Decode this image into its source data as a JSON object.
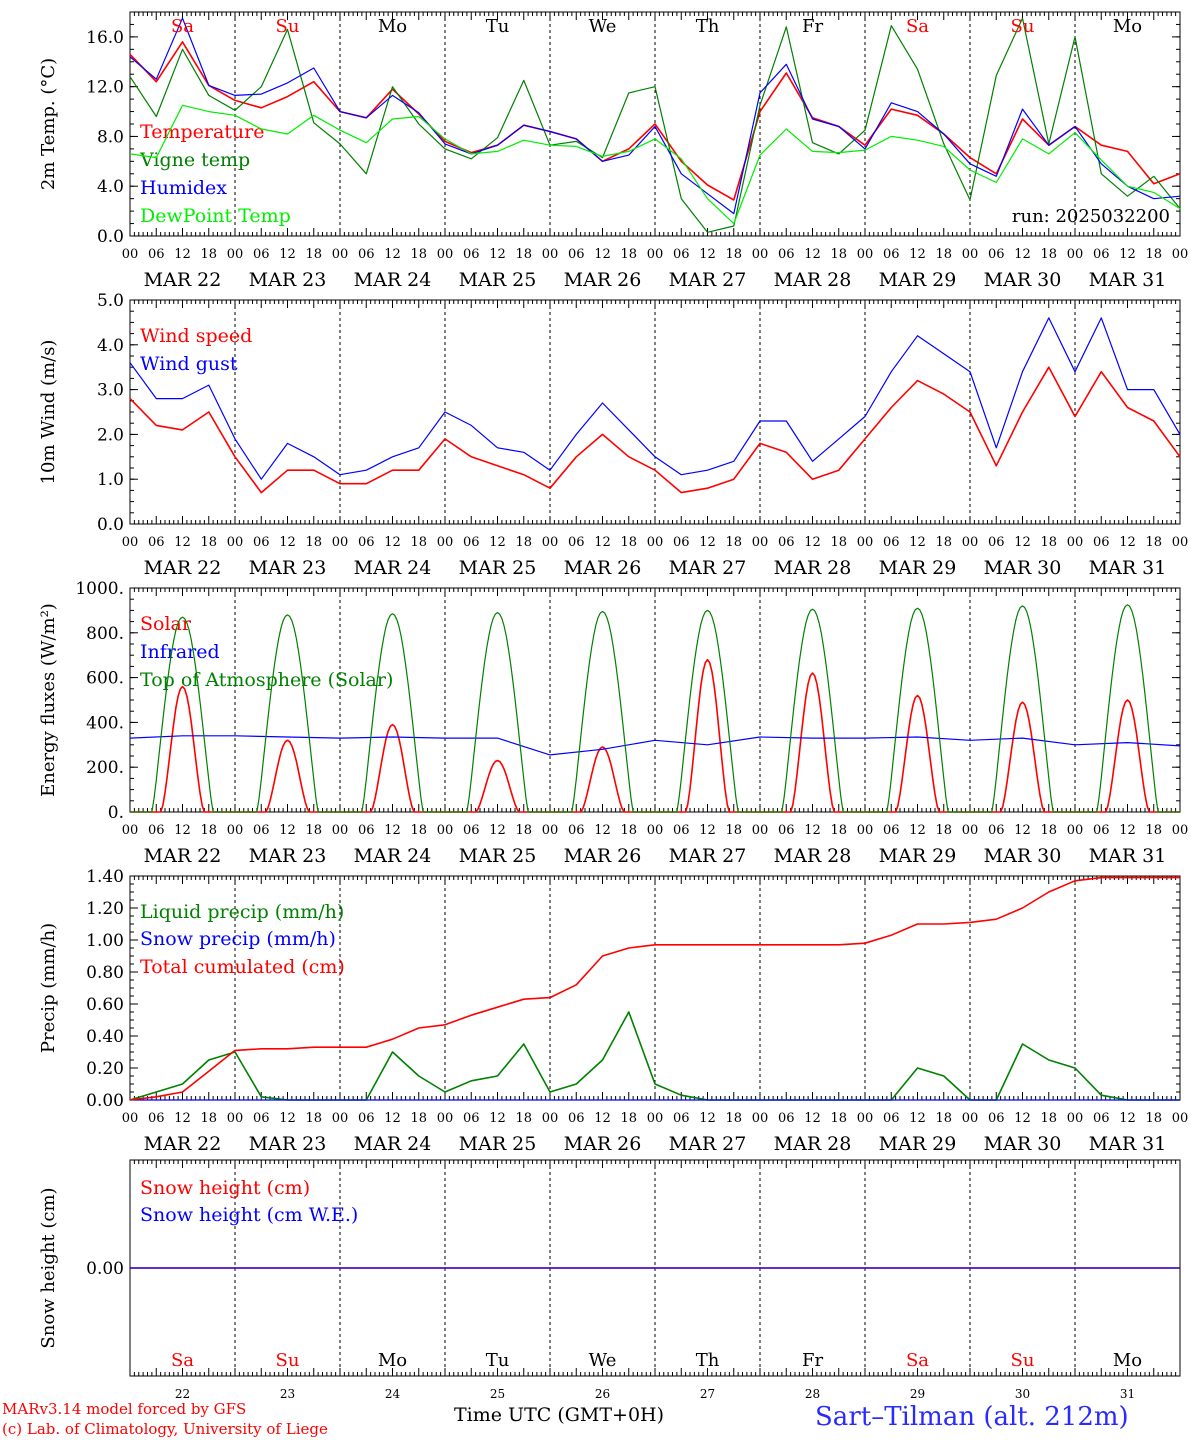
{
  "chart_data": [
    {
      "type": "line",
      "ylabel": "2m Temp. (°C)",
      "ylim": [
        0,
        18
      ],
      "ytick_labels": [
        "0.0",
        "4.0",
        "8.0",
        "12.0",
        "16.0"
      ],
      "ytick_values": [
        0,
        4,
        8,
        12,
        16
      ],
      "run_label": "run: 2025032200",
      "legend_placement": "left",
      "x": [
        0,
        6,
        12,
        18,
        24,
        30,
        36,
        42,
        48,
        54,
        60,
        66,
        72,
        78,
        84,
        90,
        96,
        102,
        108,
        114,
        120,
        126,
        132,
        138,
        144,
        150,
        156,
        162,
        168,
        174,
        180,
        186,
        192,
        198,
        204,
        210,
        216,
        222,
        228,
        234,
        240
      ],
      "series": [
        {
          "name": "Temperature",
          "color": "#ff0000",
          "values": [
            14.6,
            12.4,
            15.6,
            12.1,
            10.9,
            10.3,
            11.2,
            12.4,
            10.0,
            9.5,
            11.8,
            9.8,
            7.6,
            6.7,
            7.3,
            8.9,
            8.4,
            7.8,
            6.0,
            7.0,
            9.0,
            6.0,
            4.1,
            2.9,
            10.0,
            13.1,
            9.5,
            8.8,
            7.3,
            10.2,
            9.7,
            8.2,
            6.3,
            5.0,
            9.4,
            7.3,
            8.8,
            7.3,
            6.8,
            4.2,
            5.0
          ]
        },
        {
          "name": "Vigne temp",
          "color": "#008000",
          "values": [
            12.8,
            9.6,
            15.0,
            11.3,
            10.1,
            12.0,
            16.6,
            9.1,
            7.4,
            5.0,
            12.0,
            9.0,
            7.0,
            6.2,
            7.9,
            12.5,
            7.3,
            7.6,
            6.3,
            11.5,
            12.0,
            3.0,
            0.3,
            0.8,
            10.5,
            16.8,
            7.5,
            6.6,
            8.5,
            16.9,
            13.4,
            7.4,
            2.9,
            12.9,
            17.5,
            7.4,
            16.0,
            5.0,
            3.2,
            4.8,
            2.2
          ]
        },
        {
          "name": "Humidex",
          "color": "#0000ff",
          "values": [
            14.4,
            12.6,
            17.5,
            12.1,
            11.3,
            11.4,
            12.3,
            13.5,
            10.0,
            9.5,
            11.3,
            9.9,
            7.4,
            6.6,
            7.3,
            8.9,
            8.4,
            7.8,
            6.0,
            6.5,
            8.8,
            5.0,
            3.4,
            1.8,
            11.5,
            13.8,
            9.4,
            8.8,
            7.0,
            10.7,
            10.0,
            8.2,
            5.8,
            4.8,
            10.2,
            7.3,
            8.8,
            5.8,
            4.0,
            3.0,
            3.2
          ]
        },
        {
          "name": "DewPoint Temp",
          "color": "#00ee00",
          "values": [
            6.6,
            6.3,
            10.5,
            10.0,
            9.7,
            8.6,
            8.2,
            9.7,
            8.5,
            7.5,
            9.4,
            9.6,
            7.8,
            6.6,
            6.8,
            7.7,
            7.3,
            7.2,
            6.4,
            6.8,
            7.8,
            6.2,
            3.0,
            1.0,
            6.5,
            8.6,
            6.8,
            6.7,
            6.9,
            8.0,
            7.7,
            7.2,
            5.3,
            4.3,
            7.8,
            6.6,
            8.3,
            6.1,
            4.0,
            3.5,
            2.2
          ]
        }
      ]
    },
    {
      "type": "line",
      "ylabel": "10m Wind (m/s)",
      "ylim": [
        0,
        5
      ],
      "ytick_labels": [
        "0.0",
        "1.0",
        "2.0",
        "3.0",
        "4.0",
        "5.0"
      ],
      "ytick_values": [
        0,
        1,
        2,
        3,
        4,
        5
      ],
      "legend_placement": "left",
      "x": [
        0,
        6,
        12,
        18,
        24,
        30,
        36,
        42,
        48,
        54,
        60,
        66,
        72,
        78,
        84,
        90,
        96,
        102,
        108,
        114,
        120,
        126,
        132,
        138,
        144,
        150,
        156,
        162,
        168,
        174,
        180,
        186,
        192,
        198,
        204,
        210,
        216,
        222,
        228,
        234,
        240
      ],
      "series": [
        {
          "name": "Wind speed",
          "color": "#ff0000",
          "values": [
            2.8,
            2.2,
            2.1,
            2.5,
            1.5,
            0.7,
            1.2,
            1.2,
            0.9,
            0.9,
            1.2,
            1.2,
            1.9,
            1.5,
            1.3,
            1.1,
            0.8,
            1.5,
            2.0,
            1.5,
            1.2,
            0.7,
            0.8,
            1.0,
            1.8,
            1.6,
            1.0,
            1.2,
            1.9,
            2.6,
            3.2,
            2.9,
            2.5,
            1.3,
            2.5,
            3.5,
            2.4,
            3.4,
            2.6,
            2.3,
            1.5
          ]
        },
        {
          "name": "Wind gust",
          "color": "#0000ff",
          "values": [
            3.6,
            2.8,
            2.8,
            3.1,
            1.9,
            1.0,
            1.8,
            1.5,
            1.1,
            1.2,
            1.5,
            1.7,
            2.5,
            2.2,
            1.7,
            1.6,
            1.2,
            2.0,
            2.7,
            2.1,
            1.5,
            1.1,
            1.2,
            1.4,
            2.3,
            2.3,
            1.4,
            1.9,
            2.4,
            3.4,
            4.2,
            3.8,
            3.4,
            1.7,
            3.4,
            4.6,
            3.4,
            4.6,
            3.0,
            3.0,
            2.0
          ]
        }
      ]
    },
    {
      "type": "line",
      "ylabel": "Energy fluxes (W/m²)",
      "ylim": [
        0,
        1000
      ],
      "ytick_labels": [
        "0.",
        "200.",
        "400.",
        "600.",
        "800.",
        "1000."
      ],
      "ytick_values": [
        0,
        200,
        400,
        600,
        800,
        1000
      ],
      "legend_placement": "left",
      "series": [
        {
          "name": "Solar",
          "color": "#ff0000",
          "day_peaks": [
            560,
            320,
            390,
            230,
            290,
            680,
            620,
            520,
            490,
            500
          ]
        },
        {
          "name": "Infrared",
          "color": "#0000ff",
          "values": [
            330,
            340,
            340,
            335,
            330,
            335,
            330,
            330,
            255,
            280,
            320,
            300,
            335,
            330,
            330,
            335,
            320,
            330,
            300,
            310,
            295
          ]
        },
        {
          "name": "Top of Atmosphere (Solar)",
          "color": "#008000",
          "day_peaks": [
            870,
            880,
            885,
            890,
            895,
            900,
            905,
            910,
            920,
            925
          ]
        }
      ]
    },
    {
      "type": "line",
      "ylabel": "Precip (mm/h)",
      "ylim": [
        0,
        1.4
      ],
      "ytick_labels": [
        "0.00",
        "0.20",
        "0.40",
        "0.60",
        "0.80",
        "1.00",
        "1.20",
        "1.40"
      ],
      "ytick_values": [
        0,
        0.2,
        0.4,
        0.6,
        0.8,
        1.0,
        1.2,
        1.4
      ],
      "legend_placement": "left",
      "x": [
        0,
        6,
        12,
        18,
        24,
        30,
        36,
        42,
        48,
        54,
        60,
        66,
        72,
        78,
        84,
        90,
        96,
        102,
        108,
        114,
        120,
        126,
        132,
        138,
        144,
        150,
        156,
        162,
        168,
        174,
        180,
        186,
        192,
        198,
        204,
        210,
        216,
        222,
        228,
        234,
        240
      ],
      "series": [
        {
          "name": "Liquid precip (mm/h)",
          "color": "#008000",
          "values": [
            0,
            0.05,
            0.1,
            0.25,
            0.3,
            0.02,
            0,
            0,
            0,
            0,
            0.3,
            0.15,
            0.05,
            0.12,
            0.15,
            0.35,
            0.05,
            0.1,
            0.25,
            0.55,
            0.1,
            0.03,
            0,
            0,
            0,
            0,
            0,
            0,
            0,
            0,
            0.2,
            0.15,
            0,
            0,
            0.35,
            0.25,
            0.2,
            0.03,
            0,
            0,
            0
          ]
        },
        {
          "name": "Snow precip (mm/h)",
          "color": "#0000ff",
          "values": [
            0,
            0,
            0,
            0,
            0,
            0,
            0,
            0,
            0,
            0,
            0,
            0,
            0,
            0,
            0,
            0,
            0,
            0,
            0,
            0,
            0,
            0,
            0,
            0,
            0,
            0,
            0,
            0,
            0,
            0,
            0,
            0,
            0,
            0,
            0,
            0,
            0,
            0,
            0,
            0,
            0
          ]
        },
        {
          "name": "Total cumulated (cm)",
          "color": "#ff0000",
          "values": [
            0,
            0.02,
            0.05,
            0.18,
            0.31,
            0.32,
            0.32,
            0.33,
            0.33,
            0.33,
            0.38,
            0.45,
            0.47,
            0.53,
            0.58,
            0.63,
            0.64,
            0.72,
            0.9,
            0.95,
            0.97,
            0.97,
            0.97,
            0.97,
            0.97,
            0.97,
            0.97,
            0.97,
            0.98,
            1.03,
            1.1,
            1.1,
            1.11,
            1.13,
            1.2,
            1.3,
            1.37,
            1.39,
            1.39,
            1.39,
            1.39
          ]
        }
      ]
    },
    {
      "type": "line",
      "ylabel": "Snow height (cm)",
      "ylim": [
        -1,
        1
      ],
      "ytick_labels": [
        "0.00"
      ],
      "ytick_values": [
        0
      ],
      "legend_placement": "left",
      "series": [
        {
          "name": "Snow height (cm)",
          "color": "#ff0000",
          "values": [
            0,
            0
          ]
        },
        {
          "name": "Snow height (cm W.E.)",
          "color": "#0000ff",
          "values": [
            0,
            0
          ]
        }
      ]
    }
  ],
  "x_hour_labels": [
    "00",
    "06",
    "12",
    "18"
  ],
  "x_last_label": "00",
  "date_labels": [
    "MAR 22",
    "MAR 23",
    "MAR 24",
    "MAR 25",
    "MAR 26",
    "MAR 27",
    "MAR 28",
    "MAR 29",
    "MAR 30",
    "MAR 31"
  ],
  "day_names": [
    "Sa",
    "Su",
    "Mo",
    "Tu",
    "We",
    "Th",
    "Fr",
    "Sa",
    "Su",
    "Mo"
  ],
  "day_numbers": [
    "22",
    "23",
    "24",
    "25",
    "26",
    "27",
    "28",
    "29",
    "30",
    "31"
  ],
  "weekend_color": "#ff0000",
  "weekday_color": "#000000",
  "footer": {
    "xlabel": "Time UTC (GMT+0H)",
    "model_line": "MARv3.14 model forced by GFS",
    "copyright_line": "(c) Lab. of Climatology, University of Liege",
    "station": "Sart–Tilman (alt. 212m)"
  }
}
